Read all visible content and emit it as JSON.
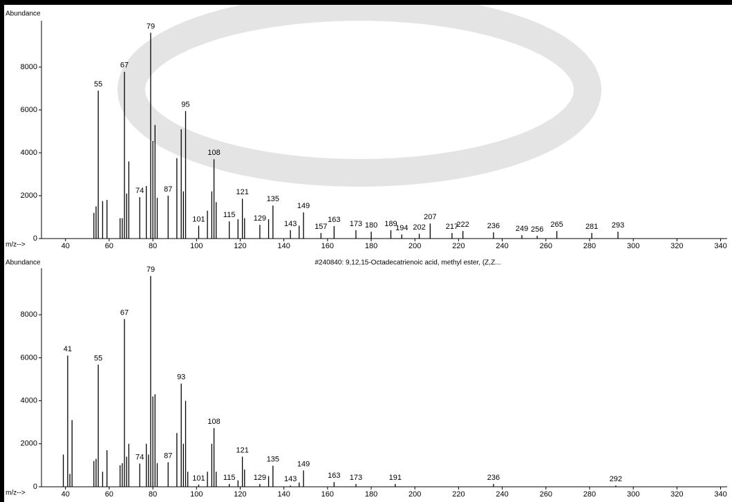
{
  "chart_data": [
    {
      "type": "bar",
      "y_label": "Abundance",
      "x_label": "m/z-->",
      "color": "#000000",
      "x": [
        53,
        54,
        55,
        57,
        59,
        65,
        66,
        67,
        68,
        69,
        74,
        77,
        79,
        80,
        81,
        82,
        87,
        91,
        93,
        94,
        95,
        101,
        105,
        107,
        108,
        109,
        115,
        119,
        121,
        122,
        129,
        133,
        135,
        143,
        147,
        149,
        157,
        163,
        173,
        180,
        189,
        194,
        202,
        207,
        217,
        222,
        236,
        249,
        256,
        265,
        281,
        293
      ],
      "values": [
        1200,
        1500,
        6900,
        1750,
        1800,
        950,
        950,
        7780,
        2100,
        3600,
        1930,
        2450,
        9600,
        4550,
        5300,
        1900,
        2000,
        3750,
        5100,
        2200,
        5950,
        600,
        1300,
        2200,
        3700,
        1700,
        800,
        900,
        1860,
        950,
        640,
        900,
        1540,
        390,
        600,
        1220,
        260,
        580,
        390,
        320,
        390,
        190,
        220,
        700,
        260,
        350,
        290,
        160,
        130,
        350,
        260,
        320
      ],
      "peak_labels": [
        null,
        null,
        55,
        null,
        null,
        null,
        null,
        67,
        null,
        null,
        74,
        null,
        79,
        null,
        null,
        null,
        87,
        null,
        null,
        null,
        95,
        101,
        null,
        null,
        108,
        null,
        115,
        null,
        121,
        null,
        129,
        null,
        135,
        143,
        null,
        149,
        157,
        163,
        173,
        180,
        189,
        194,
        202,
        207,
        217,
        222,
        236,
        249,
        256,
        265,
        281,
        293
      ],
      "xlim": [
        29,
        343
      ],
      "xticks": [
        40,
        60,
        80,
        100,
        120,
        140,
        160,
        180,
        200,
        220,
        240,
        260,
        280,
        300,
        320,
        340
      ],
      "ylim": [
        0,
        10000
      ],
      "yticks": [
        0,
        2000,
        4000,
        6000,
        8000
      ]
    },
    {
      "type": "bar",
      "title": "#240840: 9,12,15-Octadecatrienoic acid, methyl ester, (Z,Z...",
      "y_label": "Abundance",
      "x_label": "m/z-->",
      "color": "#000000",
      "x": [
        39,
        41,
        42,
        43,
        53,
        54,
        55,
        57,
        59,
        65,
        66,
        67,
        68,
        69,
        74,
        77,
        78,
        79,
        80,
        81,
        82,
        87,
        91,
        93,
        94,
        95,
        96,
        101,
        105,
        107,
        108,
        109,
        115,
        119,
        121,
        122,
        129,
        133,
        135,
        143,
        147,
        149,
        163,
        173,
        191,
        236,
        292
      ],
      "values": [
        1500,
        6100,
        600,
        3100,
        1200,
        1300,
        5680,
        700,
        1700,
        1000,
        1100,
        7800,
        1400,
        2000,
        1080,
        2000,
        1500,
        9800,
        4200,
        4300,
        1100,
        1140,
        2500,
        4800,
        2000,
        4000,
        700,
        100,
        700,
        2000,
        2730,
        700,
        130,
        300,
        1400,
        800,
        130,
        500,
        980,
        60,
        200,
        760,
        220,
        130,
        130,
        130,
        60
      ],
      "peak_labels": [
        null,
        41,
        null,
        null,
        null,
        null,
        55,
        null,
        null,
        null,
        null,
        67,
        null,
        null,
        74,
        null,
        null,
        79,
        null,
        null,
        null,
        87,
        null,
        93,
        null,
        null,
        null,
        101,
        null,
        null,
        108,
        null,
        115,
        null,
        121,
        null,
        129,
        null,
        135,
        143,
        null,
        149,
        163,
        173,
        191,
        236,
        292
      ],
      "xlim": [
        29,
        343
      ],
      "xticks": [
        40,
        60,
        80,
        100,
        120,
        140,
        160,
        180,
        200,
        220,
        240,
        260,
        280,
        300,
        320,
        340
      ],
      "ylim": [
        0,
        10000
      ],
      "yticks": [
        0,
        2000,
        4000,
        6000,
        8000
      ]
    }
  ]
}
